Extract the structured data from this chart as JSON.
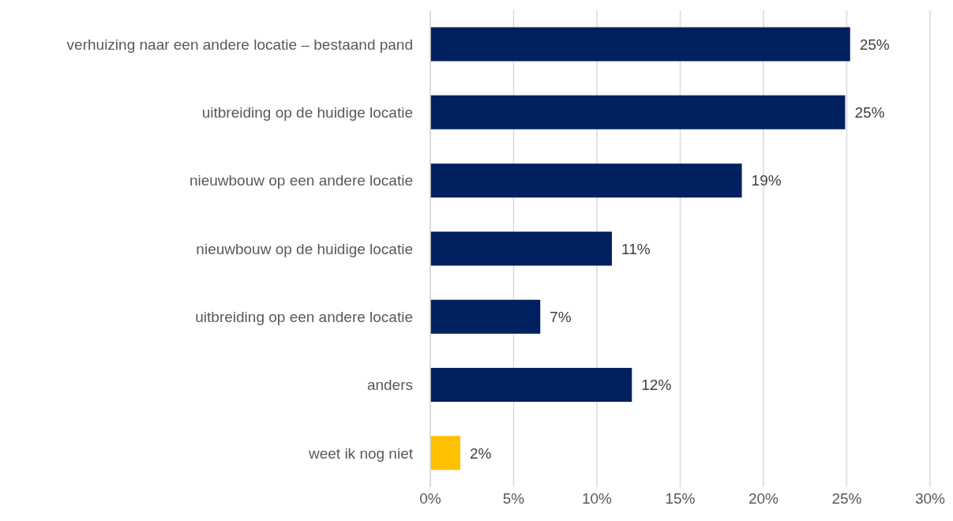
{
  "chart_data": {
    "type": "bar",
    "orientation": "horizontal",
    "categories": [
      "verhuizing naar een andere locatie – bestaand pand",
      "uitbreiding op de huidige locatie",
      "nieuwbouw op een andere locatie",
      "nieuwbouw op de huidige locatie",
      "uitbreiding op een andere locatie",
      "anders",
      "weet ik nog niet"
    ],
    "values": [
      25.2,
      24.9,
      18.7,
      10.9,
      6.6,
      12.1,
      1.8
    ],
    "value_labels": [
      "25%",
      "25%",
      "19%",
      "11%",
      "7%",
      "12%",
      "2%"
    ],
    "colors": [
      "#002060",
      "#002060",
      "#002060",
      "#002060",
      "#002060",
      "#002060",
      "#ffc000"
    ],
    "xlim": [
      0,
      30
    ],
    "xticks": [
      {
        "value": 0,
        "label": "0%"
      },
      {
        "value": 5,
        "label": "5%"
      },
      {
        "value": 10,
        "label": "10%"
      },
      {
        "value": 15,
        "label": "15%"
      },
      {
        "value": 20,
        "label": "20%"
      },
      {
        "value": 25,
        "label": "25%"
      },
      {
        "value": 30,
        "label": "30%"
      }
    ],
    "grid": "x"
  }
}
